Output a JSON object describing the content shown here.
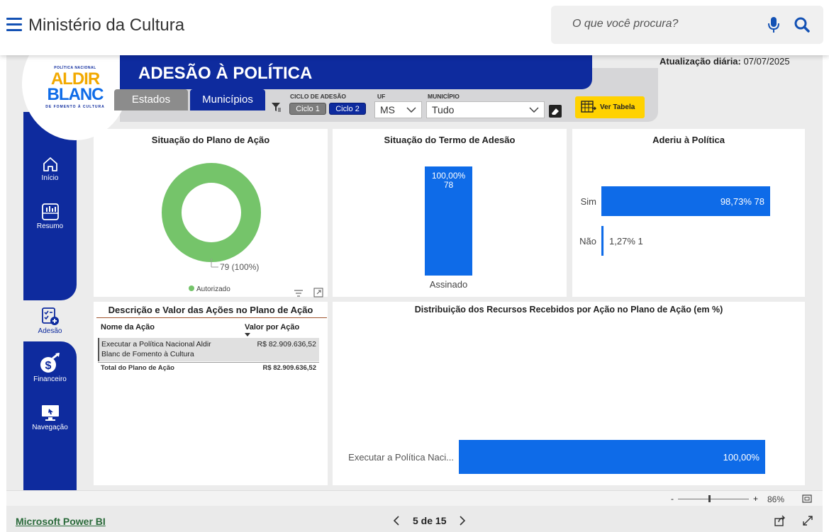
{
  "site": {
    "title": "Ministério da Cultura",
    "search_placeholder": "O que você procura?"
  },
  "report": {
    "logo": {
      "top_text": "POLÍTICA NACIONAL",
      "word1": "ALDIR",
      "word2": "BLANC",
      "bottom_text": "DE FOMENTO À CULTURA"
    },
    "title": "ADESÃO À POLÍTICA",
    "update_label": "Atualização diária:",
    "update_date": "07/07/2025",
    "tabs": {
      "estados": "Estados",
      "municipios": "Municípios"
    },
    "filters": {
      "ciclo_label": "CICLO DE ADESÃO",
      "ciclo1": "Ciclo 1",
      "ciclo2": "Ciclo 2",
      "uf_label": "UF",
      "uf_value": "MS",
      "municipio_label": "MUNICÍPIO",
      "municipio_value": "Tudo"
    },
    "ver_tabela": "Ver Tabela",
    "nav": [
      {
        "label": "Início",
        "icon": "home-icon"
      },
      {
        "label": "Resumo",
        "icon": "chart-icon"
      },
      {
        "label": "Adesão",
        "icon": "checklist-icon"
      },
      {
        "label": "Financeiro",
        "icon": "money-icon"
      },
      {
        "label": "Navegação",
        "icon": "monitor-icon"
      }
    ],
    "table": {
      "title": "Descrição e Valor das Ações no Plano de Ação",
      "col1": "Nome da Ação",
      "col2": "Valor por Ação",
      "row1_line1": "Executar a Política Nacional Aldir",
      "row1_line2": "Blanc de Fomento à Cultura",
      "row1_value": "R$ 82.909.636,52",
      "total_label": "Total do Plano de Ação",
      "total_value": "R$ 82.909.636,52"
    },
    "colors": {
      "navy": "#0e2b9e",
      "blue": "#0e6be8",
      "green": "#75c46a",
      "yellow": "#ffd200"
    }
  },
  "chart_data": [
    {
      "type": "pie",
      "title": "Situação do Plano de Ação",
      "categories": [
        "Autorizado"
      ],
      "values": [
        79
      ],
      "labels": [
        "79 (100%)"
      ],
      "legend": [
        "Autorizado"
      ]
    },
    {
      "type": "bar",
      "title": "Situação do Termo de Adesão",
      "categories": [
        "Assinado"
      ],
      "values": [
        78
      ],
      "percent_labels": [
        "100,00%"
      ],
      "count_labels": [
        "78"
      ]
    },
    {
      "type": "bar",
      "title": "Aderiu à Política",
      "categories": [
        "Sim",
        "Não"
      ],
      "values": [
        78,
        1
      ],
      "labels": [
        "98,73% 78",
        "1,27% 1"
      ]
    },
    {
      "type": "bar",
      "title": "Distribuição dos Recursos Recebidos por Ação no Plano de Ação (em %)",
      "categories": [
        "Executar a Política Naci..."
      ],
      "values": [
        100
      ],
      "labels": [
        "100,00%"
      ]
    }
  ],
  "footer": {
    "zoom": "86%",
    "zoom_level": 0.86,
    "pbi_link": "Microsoft Power BI",
    "page": "5 de 15",
    "minus": "-",
    "plus": "+"
  }
}
